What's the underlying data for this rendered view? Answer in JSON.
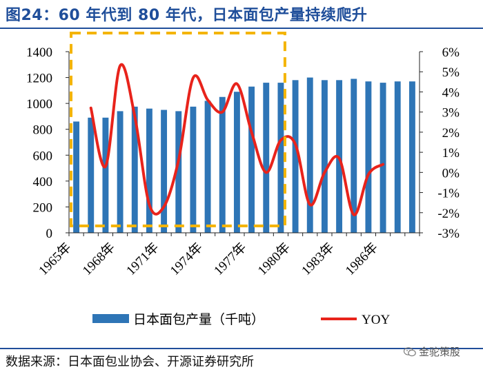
{
  "figure": {
    "title": "图24：60 年代到 80 年代，日本面包产量持续爬升",
    "source": "数据来源：日本面包业协会、开源证券研究所",
    "watermark": "金驼策股",
    "watermark_icon": "wechat-icon"
  },
  "colors": {
    "title": "#1f4e9a",
    "bar": "#2e75b6",
    "line": "#e8231b",
    "highlight_box": "#f4b400"
  },
  "chart_data": {
    "type": "bar",
    "title": "",
    "x": [
      1965,
      1966,
      1967,
      1968,
      1969,
      1970,
      1971,
      1972,
      1973,
      1974,
      1975,
      1976,
      1977,
      1978,
      1979,
      1980,
      1981,
      1982,
      1983,
      1984,
      1985,
      1986,
      1987,
      1988
    ],
    "x_tick_labels": [
      "1965年",
      "1968年",
      "1971年",
      "1974年",
      "1977年",
      "1980年",
      "1983年",
      "1986年"
    ],
    "x_tick_years": [
      1965,
      1968,
      1971,
      1974,
      1977,
      1980,
      1983,
      1986
    ],
    "series": [
      {
        "name": "日本面包产量（千吨）",
        "type": "bar",
        "axis": "left",
        "values": [
          860,
          890,
          890,
          940,
          975,
          960,
          950,
          940,
          975,
          1020,
          1050,
          1090,
          1130,
          1160,
          1160,
          1180,
          1200,
          1180,
          1180,
          1190,
          1170,
          1160,
          1170,
          1170
        ]
      },
      {
        "name": "YOY",
        "type": "line",
        "axis": "right",
        "unit": "%",
        "values": [
          null,
          3.2,
          0.3,
          5.3,
          2.8,
          -1.6,
          -1.7,
          0.6,
          4.7,
          3.6,
          3.0,
          4.4,
          2.0,
          0.0,
          1.6,
          1.4,
          -1.6,
          0.0,
          0.7,
          -2.1,
          -0.1,
          0.4,
          null,
          null
        ]
      }
    ],
    "y_left": {
      "min": 0,
      "max": 1400,
      "ticks": [
        0,
        200,
        400,
        600,
        800,
        1000,
        1200,
        1400
      ],
      "tick_labels": [
        "0",
        "200",
        "400",
        "600",
        "800",
        "1000",
        "1200",
        "1400"
      ]
    },
    "y_right": {
      "min": -3,
      "max": 6,
      "ticks": [
        -3,
        -2,
        -1,
        0,
        1,
        2,
        3,
        4,
        5,
        6
      ],
      "tick_labels": [
        "-3%",
        "-2%",
        "-1%",
        "0%",
        "1%",
        "2%",
        "3%",
        "4%",
        "5%",
        "6%"
      ]
    },
    "annotation": {
      "type": "dashed-box",
      "x_range": [
        1965,
        1979
      ]
    },
    "grid": false,
    "legend": "bottom-center"
  }
}
